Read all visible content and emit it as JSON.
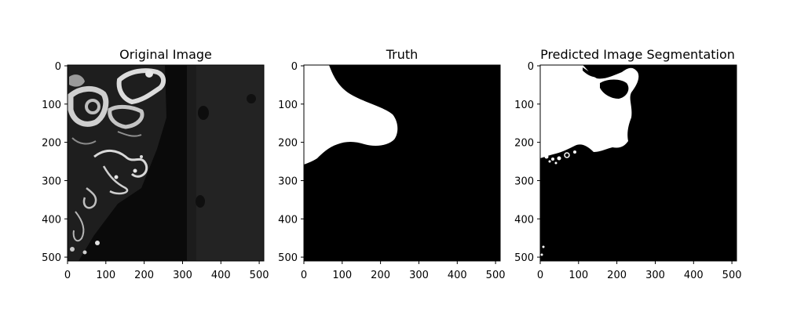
{
  "chart_data": [
    {
      "type": "image",
      "title": "Original Image",
      "xlim": [
        0,
        512
      ],
      "ylim": [
        512,
        0
      ],
      "xticks": [
        "0",
        "100",
        "200",
        "300",
        "400",
        "500"
      ],
      "yticks": [
        "0",
        "100",
        "200",
        "300",
        "400",
        "500"
      ],
      "colormap": "gray"
    },
    {
      "type": "image",
      "title": "Truth",
      "xlim": [
        0,
        512
      ],
      "ylim": [
        512,
        0
      ],
      "xticks": [
        "0",
        "100",
        "200",
        "300",
        "400",
        "500"
      ],
      "yticks": [
        "0",
        "100",
        "200",
        "300",
        "400",
        "500"
      ],
      "colormap": "gray"
    },
    {
      "type": "image",
      "title": "Predicted Image Segmentation",
      "xlim": [
        0,
        512
      ],
      "ylim": [
        512,
        0
      ],
      "xticks": [
        "0",
        "100",
        "200",
        "300",
        "400",
        "500"
      ],
      "yticks": [
        "0",
        "100",
        "200",
        "300",
        "400",
        "500"
      ],
      "colormap": "gray"
    }
  ]
}
